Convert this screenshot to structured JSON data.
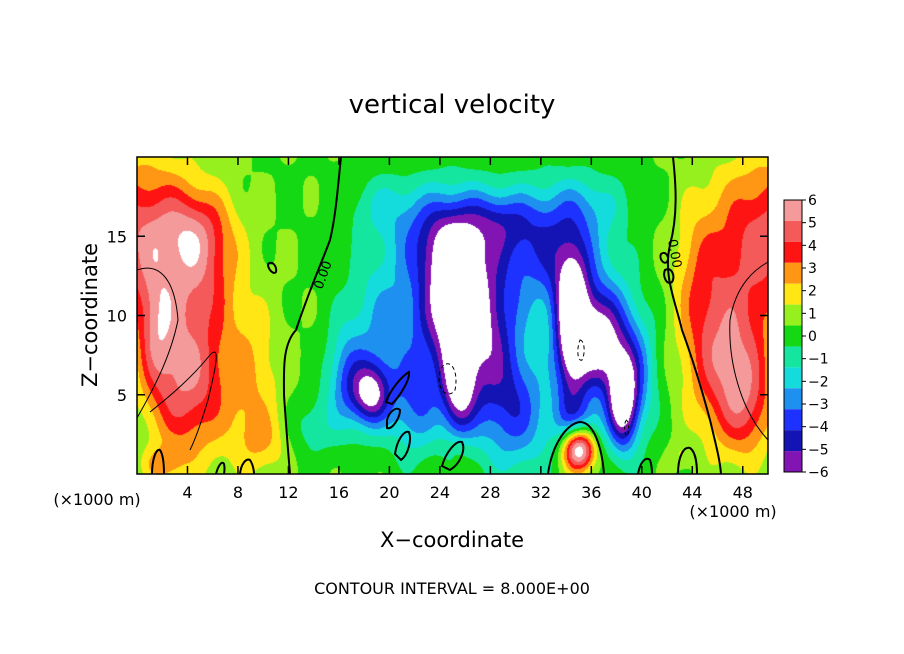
{
  "chart_data": {
    "type": "heatmap",
    "title": "vertical velocity",
    "xlabel": "X−coordinate",
    "ylabel": "Z−coordinate",
    "x_unit_left": "(×1000 m)",
    "x_unit_right": "(×1000 m)",
    "xlim": [
      0,
      50
    ],
    "ylim": [
      0,
      20
    ],
    "x_ticks": [
      4,
      8,
      12,
      16,
      20,
      24,
      28,
      32,
      36,
      40,
      44,
      48
    ],
    "x_tick_labels": [
      "4",
      "8",
      "12",
      "16",
      "20",
      "24",
      "28",
      "32",
      "36",
      "40",
      "44",
      "48"
    ],
    "y_ticks": [
      5,
      10,
      15
    ],
    "y_tick_labels": [
      "5",
      "10",
      "15"
    ],
    "colorbar": {
      "min": -6,
      "max": 6,
      "labels": [
        "6",
        "5",
        "4",
        "3",
        "2",
        "1",
        "0",
        "−1",
        "−2",
        "−3",
        "−4",
        "−5",
        "−6"
      ],
      "colors": [
        "#f49a9a",
        "#f45a5a",
        "#ff1414",
        "#ff9614",
        "#ffe614",
        "#96f01e",
        "#14d814",
        "#14e6a0",
        "#14dcdc",
        "#1e90f0",
        "#1e32ff",
        "#1414b4",
        "#8214b4"
      ]
    },
    "contour_label": "0.00",
    "footer": "CONTOUR INTERVAL = 8.000E+00",
    "features": [
      {
        "x": 0,
        "z": 15,
        "sx": 4.5,
        "sz": 5,
        "w": 4.5
      },
      {
        "x": 5,
        "z": 13,
        "sx": 3,
        "sz": 4,
        "w": 3
      },
      {
        "x": 4,
        "z": 6,
        "sx": 3,
        "sz": 5,
        "w": 5
      },
      {
        "x": 1.5,
        "z": 9,
        "sx": 1.5,
        "sz": 4,
        "w": 3
      },
      {
        "x": 9,
        "z": 6,
        "sx": 2.5,
        "sz": 5,
        "w": 2
      },
      {
        "x": 10,
        "z": 2,
        "sx": 2,
        "sz": 2,
        "w": 1.5
      },
      {
        "x": 2,
        "z": 0.6,
        "sx": 1.5,
        "sz": 1,
        "w": 2
      },
      {
        "x": 4.5,
        "z": 15.5,
        "sx": 3,
        "sz": 2.5,
        "w": 2
      },
      {
        "x": 50,
        "z": 15,
        "sx": 4.5,
        "sz": 5,
        "w": 4.5
      },
      {
        "x": 47,
        "z": 7,
        "sx": 3,
        "sz": 5,
        "w": 5
      },
      {
        "x": 44.5,
        "z": 12,
        "sx": 2,
        "sz": 5,
        "w": 2
      },
      {
        "x": 48.5,
        "z": 4,
        "sx": 2,
        "sz": 3,
        "w": 2
      },
      {
        "x": 25,
        "z": 10.5,
        "sx": 2.8,
        "sz": 5,
        "w": -8
      },
      {
        "x": 24.5,
        "z": 15,
        "sx": 4,
        "sz": 3,
        "w": -4
      },
      {
        "x": 25.5,
        "z": 5,
        "sx": 1.3,
        "sz": 3,
        "w": -5
      },
      {
        "x": 18.5,
        "z": 5,
        "sx": 1.5,
        "sz": 2,
        "w": -6
      },
      {
        "x": 19.5,
        "z": 9,
        "sx": 3,
        "sz": 5,
        "w": -3
      },
      {
        "x": 16.5,
        "z": 6,
        "sx": 1.5,
        "sz": 3,
        "w": -3
      },
      {
        "x": 14,
        "z": 3,
        "sx": 2,
        "sz": 2,
        "w": -1.5
      },
      {
        "x": 22,
        "z": 4,
        "sx": 2,
        "sz": 3,
        "w": -3
      },
      {
        "x": 28,
        "z": 9,
        "sx": 2.5,
        "sz": 5,
        "w": -4
      },
      {
        "x": 30,
        "z": 4,
        "sx": 3,
        "sz": 4,
        "w": -4
      },
      {
        "x": 33,
        "z": 14,
        "sx": 4,
        "sz": 4,
        "w": -4.5
      },
      {
        "x": 34.5,
        "z": 9,
        "sx": 1.4,
        "sz": 4.5,
        "w": -9
      },
      {
        "x": 36.5,
        "z": 8.5,
        "sx": 1.5,
        "sz": 3,
        "w": -5
      },
      {
        "x": 38.5,
        "z": 4.5,
        "sx": 1.2,
        "sz": 3,
        "w": -7
      },
      {
        "x": 38,
        "z": 8,
        "sx": 2,
        "sz": 4,
        "w": -4
      },
      {
        "x": 35,
        "z": 3,
        "sx": 2,
        "sz": 2,
        "w": -3
      },
      {
        "x": 40,
        "z": 6,
        "sx": 1.5,
        "sz": 4,
        "w": -2
      },
      {
        "x": 35,
        "z": 1.6,
        "sx": 1.3,
        "sz": 1.4,
        "w": 9
      },
      {
        "x": 25.5,
        "z": 1.5,
        "sx": 1,
        "sz": 1,
        "w": 1
      },
      {
        "x": 43,
        "z": 1.2,
        "sx": 0.8,
        "sz": 0.8,
        "w": 1
      },
      {
        "x": 19.5,
        "z": 17,
        "sx": 3,
        "sz": 2,
        "w": -1.5
      },
      {
        "x": 29,
        "z": 16,
        "sx": 3,
        "sz": 2,
        "w": -2.5
      },
      {
        "x": 36,
        "z": 17,
        "sx": 3,
        "sz": 2,
        "w": -1.5
      }
    ]
  }
}
